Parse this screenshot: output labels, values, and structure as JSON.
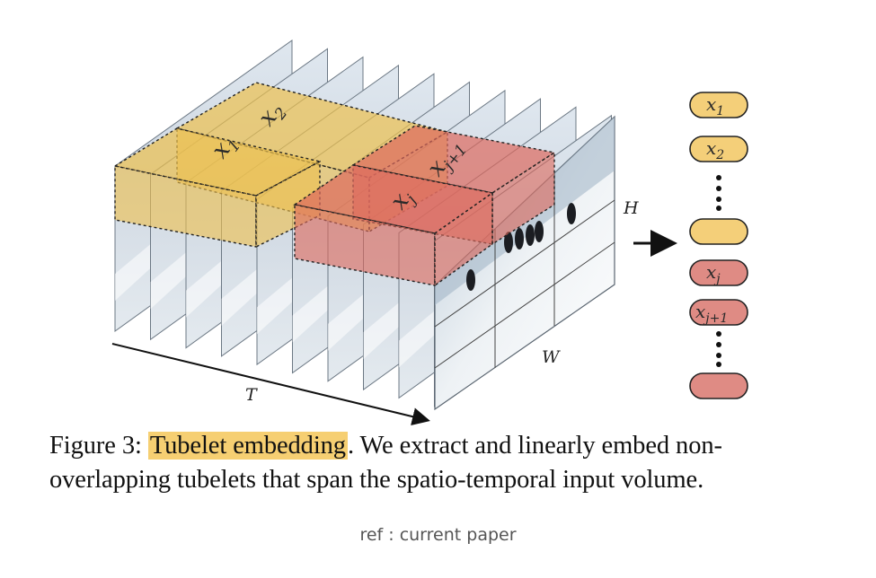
{
  "figure": {
    "axis_labels": {
      "t": "T",
      "h": "H",
      "w": "W"
    },
    "tubelet_labels": [
      {
        "base": "x",
        "sub": "1"
      },
      {
        "base": "x",
        "sub": "2"
      },
      {
        "base": "x",
        "sub": "j"
      },
      {
        "base": "x",
        "sub": "j+1"
      }
    ],
    "tokens": [
      {
        "base": "x",
        "sub": "1",
        "color": "yellow"
      },
      {
        "base": "x",
        "sub": "2",
        "color": "yellow"
      },
      {
        "base": "",
        "sub": "",
        "color": "yellow"
      },
      {
        "base": "x",
        "sub": "j",
        "color": "red"
      },
      {
        "base": "x",
        "sub": "j+1",
        "color": "red"
      },
      {
        "base": "",
        "sub": "",
        "color": "red"
      }
    ],
    "colors": {
      "yellow": "#f4cf79",
      "red": "#df8b84",
      "yellow_box": "#edc04f",
      "red_box": "#dd6a5e"
    }
  },
  "caption": {
    "prefix": "Figure 3: ",
    "highlight": "Tubelet embedding",
    "line1_rest": ". We extract and linearly embed non-",
    "line2": "overlapping tubelets that span the spatio-temporal input volume."
  },
  "ref": "ref : current paper"
}
